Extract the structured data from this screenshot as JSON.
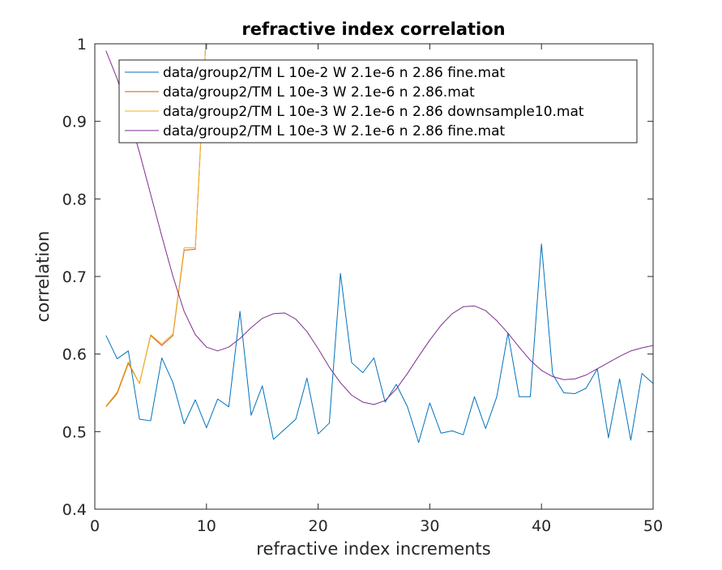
{
  "chart_data": {
    "type": "line",
    "title": "refractive index correlation",
    "xlabel": "refractive index increments",
    "ylabel": "correlation",
    "xlim": [
      0,
      50
    ],
    "ylim": [
      0.4,
      1
    ],
    "xticks": [
      0,
      10,
      20,
      30,
      40,
      50
    ],
    "yticks": [
      0.4,
      0.5,
      0.6,
      0.7,
      0.8,
      0.9,
      1
    ],
    "xtick_labels": [
      "0",
      "10",
      "20",
      "30",
      "40",
      "50"
    ],
    "ytick_labels": [
      "0.4",
      "0.5",
      "0.6",
      "0.7",
      "0.8",
      "0.9",
      "1"
    ],
    "grid": false,
    "legend_location": "top-right",
    "series": [
      {
        "name": "data/group2/TM L 10e-2 W 2.1e-6 n 2.86 fine.mat",
        "color": "#0072BD",
        "x": [
          1,
          2,
          3,
          4,
          5,
          6,
          7,
          8,
          9,
          10,
          11,
          12,
          13,
          14,
          15,
          16,
          17,
          18,
          19,
          20,
          21,
          22,
          23,
          24,
          25,
          26,
          27,
          28,
          29,
          30,
          31,
          32,
          33,
          34,
          35,
          36,
          37,
          38,
          39,
          40,
          41,
          42,
          43,
          44,
          45,
          46,
          47,
          48,
          49,
          50
        ],
        "y": [
          0.624,
          0.594,
          0.604,
          0.516,
          0.514,
          0.595,
          0.563,
          0.51,
          0.541,
          0.505,
          0.542,
          0.532,
          0.655,
          0.521,
          0.559,
          0.49,
          0.503,
          0.516,
          0.569,
          0.497,
          0.511,
          0.704,
          0.589,
          0.576,
          0.595,
          0.538,
          0.561,
          0.532,
          0.486,
          0.537,
          0.498,
          0.501,
          0.496,
          0.545,
          0.504,
          0.545,
          0.627,
          0.545,
          0.545,
          0.742,
          0.574,
          0.55,
          0.549,
          0.556,
          0.581,
          0.492,
          0.568,
          0.489,
          0.575,
          0.562
        ]
      },
      {
        "name": "data/group2/TM L 10e-3 W 2.1e-6 n 2.86.mat",
        "color": "#D95319",
        "x": [
          1,
          2,
          3,
          4,
          5,
          6,
          7,
          8,
          9,
          10
        ],
        "y": [
          0.532,
          0.549,
          0.588,
          0.562,
          0.624,
          0.611,
          0.624,
          0.734,
          0.735,
          1.02
        ]
      },
      {
        "name": "data/group2/TM L 10e-3 W 2.1e-6 n 2.86 downsample10.mat",
        "color": "#EDB120",
        "x": [
          1,
          2,
          3,
          4,
          5,
          6,
          7,
          8,
          9,
          10
        ],
        "y": [
          0.533,
          0.551,
          0.59,
          0.562,
          0.625,
          0.613,
          0.626,
          0.737,
          0.737,
          1.02
        ]
      },
      {
        "name": "data/group2/TM L 10e-3 W 2.1e-6 n 2.86 fine.mat",
        "color": "#7E2F8E",
        "x": [
          1,
          2,
          3,
          4,
          5,
          6,
          7,
          8,
          9,
          10,
          11,
          12,
          13,
          14,
          15,
          16,
          17,
          18,
          19,
          20,
          21,
          22,
          23,
          24,
          25,
          26,
          27,
          28,
          29,
          30,
          31,
          32,
          33,
          34,
          35,
          36,
          37,
          38,
          39,
          40,
          41,
          42,
          43,
          44,
          45,
          46,
          47,
          48,
          49,
          50
        ],
        "y": [
          0.991,
          0.955,
          0.91,
          0.86,
          0.806,
          0.752,
          0.7,
          0.655,
          0.625,
          0.609,
          0.604,
          0.609,
          0.62,
          0.634,
          0.646,
          0.652,
          0.653,
          0.645,
          0.629,
          0.607,
          0.583,
          0.563,
          0.547,
          0.538,
          0.535,
          0.54,
          0.555,
          0.575,
          0.597,
          0.618,
          0.637,
          0.652,
          0.661,
          0.662,
          0.656,
          0.643,
          0.627,
          0.609,
          0.592,
          0.579,
          0.571,
          0.567,
          0.568,
          0.573,
          0.581,
          0.589,
          0.597,
          0.604,
          0.608,
          0.611
        ]
      }
    ]
  }
}
